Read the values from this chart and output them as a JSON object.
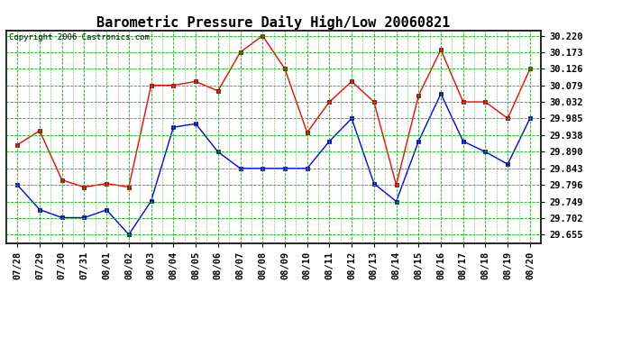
{
  "title": "Barometric Pressure Daily High/Low 20060821",
  "copyright": "Copyright 2006 Castronics.com",
  "x_labels": [
    "07/28",
    "07/29",
    "07/30",
    "07/31",
    "08/01",
    "08/02",
    "08/03",
    "08/04",
    "08/05",
    "08/06",
    "08/07",
    "08/08",
    "08/09",
    "08/10",
    "08/11",
    "08/12",
    "08/13",
    "08/14",
    "08/15",
    "08/16",
    "08/17",
    "08/18",
    "08/19",
    "08/20"
  ],
  "high_values": [
    29.91,
    29.95,
    29.81,
    29.79,
    29.8,
    29.79,
    30.079,
    30.079,
    30.09,
    30.063,
    30.173,
    30.22,
    30.126,
    29.945,
    30.032,
    30.09,
    30.032,
    29.796,
    30.05,
    30.18,
    30.032,
    30.032,
    29.985,
    30.126
  ],
  "low_values": [
    29.796,
    29.726,
    29.703,
    29.703,
    29.725,
    29.655,
    29.75,
    29.96,
    29.97,
    29.89,
    29.843,
    29.843,
    29.843,
    29.843,
    29.92,
    29.985,
    29.8,
    29.749,
    29.92,
    30.055,
    29.92,
    29.89,
    29.855,
    29.985
  ],
  "high_color": "#ff0000",
  "low_color": "#0000ff",
  "bg_color": "#ffffff",
  "grid_color": "#00bb00",
  "y_ticks": [
    29.655,
    29.702,
    29.749,
    29.796,
    29.843,
    29.89,
    29.938,
    29.985,
    30.032,
    30.079,
    30.126,
    30.173,
    30.22
  ],
  "ylim": [
    29.63,
    30.235
  ],
  "title_fontsize": 11,
  "tick_fontsize": 7.5,
  "copyright_fontsize": 6.5
}
